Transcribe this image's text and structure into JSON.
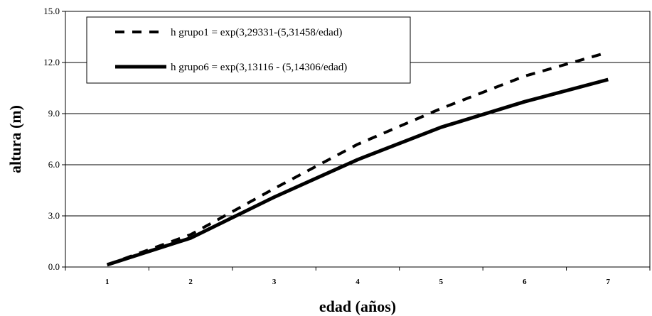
{
  "chart_data": {
    "type": "line",
    "title": "",
    "xlabel": "edad (años)",
    "ylabel": "altura (m)",
    "x": [
      1,
      2,
      3,
      4,
      5,
      6,
      7
    ],
    "xlim": [
      0.5,
      7.5
    ],
    "ylim": [
      0,
      15
    ],
    "yticks": [
      0,
      3,
      6,
      9,
      12,
      15
    ],
    "ytick_labels": [
      "0.0",
      "3.0",
      "6.0",
      "9.0",
      "12.0",
      "15.0"
    ],
    "xtick_labels": [
      "1",
      "2",
      "3",
      "4",
      "5",
      "6",
      "7"
    ],
    "grid": "horizontal",
    "legend_position": "top-left",
    "series": [
      {
        "name": "h grupo1 = exp(3,29331-(5,31458/edad)",
        "style": "dashed",
        "color": "#000000",
        "values": [
          0.13,
          1.9,
          4.6,
          7.2,
          9.3,
          11.2,
          12.6
        ]
      },
      {
        "name": "h grupo6 = exp(3,13116 - (5,14306/edad)",
        "style": "solid",
        "color": "#000000",
        "values": [
          0.13,
          1.7,
          4.1,
          6.3,
          8.2,
          9.7,
          11.0
        ]
      }
    ]
  }
}
